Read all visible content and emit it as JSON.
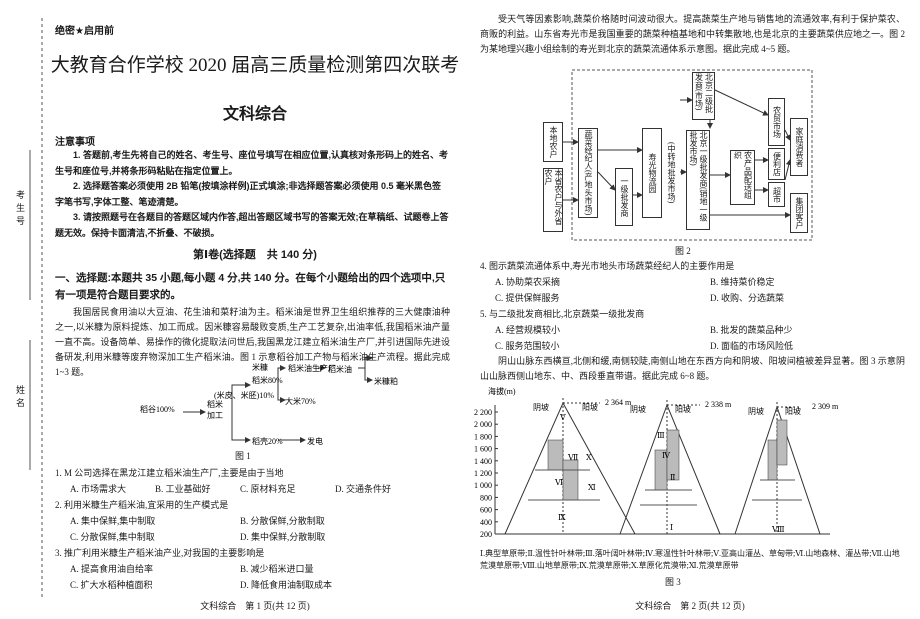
{
  "left": {
    "margin_labels": [
      "考生号",
      "姓名"
    ],
    "secret": "绝密★启用前",
    "title": "大教育合作学校 2020 届高三质量检测第四次联考",
    "subject": "文科综合",
    "notice_title": "注意事项",
    "notices": [
      "1. 答题前,考生先将自己的姓名、考生号、座位号填写在相应位置,认真核对条形码上的姓名、考生号和座位号,并将条形码粘贴在指定位置上。",
      "2. 选择题答案必须使用 2B 铅笔(按填涂样例)正式填涂;非选择题答案必须使用 0.5 毫米黑色签字笔书写,字体工整、笔迹清楚。",
      "3. 请按照题号在各题目的答题区域内作答,超出答题区域书写的答案无效;在草稿纸、试题卷上答题无效。保持卡面清洁,不折叠、不破损。"
    ],
    "section": "第Ⅰ卷(选择题　共 140 分)",
    "part": "一、选择题:本题共 35 小题,每小题 4 分,共 140 分。在每个小题给出的四个选项中,只有一项是符合题目要求的。",
    "passage": "我国居民食用油以大豆油、花生油和菜籽油为主。稻米油是世界卫生组织推荐的三大健康油种之一,以米糠为原料提炼、加工而成。因米糠容易酸败变质,生产工艺复杂,出油率低,我国稻米油产量一直不高。设备简单、易操作的微化提取法问世后,我国黑龙江建立稻米油生产厂,并引进国际先进设备研发,利用米糠等废弃物深加工生产稻米油。图 1 示意稻谷加工产物与稻米油生产流程。据此完成 1~3 题。",
    "figure1": {
      "nodes": [
        "稻谷100%",
        "稻米加工",
        "稻米80%",
        "米糠",
        "(米皮、米胚)10%",
        "稻米油生产厂",
        "稻米油",
        "米糠粕",
        "大米70%",
        "稻壳20%",
        "发电"
      ],
      "caption": "图 1"
    },
    "questions": [
      {
        "stem": "1. M 公司选择在黑龙江建立稻米油生产厂,主要是由于当地",
        "options": [
          "A. 市场需求大",
          "B. 工业基础好",
          "C. 原材料充足",
          "D. 交通条件好"
        ]
      },
      {
        "stem": "2. 利用米糠生产稻米油,宜采用的生产模式是",
        "options": [
          "A. 集中保鲜,集中制取",
          "B. 分散保鲜,分散制取",
          "C. 分散保鲜,集中制取",
          "D. 集中保鲜,分散制取"
        ]
      },
      {
        "stem": "3. 推广利用米糠生产稻米油产业,对我国的主要影响是",
        "options": [
          "A. 提高食用油自给率",
          "B. 减少稻米进口量",
          "C. 扩大水稻种植面积",
          "D. 降低食用油制取成本"
        ]
      }
    ],
    "footer": "文科综合　第 1 页(共 12 页)"
  },
  "right": {
    "passage1": "受天气等因素影响,蔬菜价格随时间波动很大。提高蔬菜生产地与销售地的流通效率,有利于保护菜农、商贩的利益。山东省寿光市是我国重要的蔬菜种植基地和中转集散地,也是北京的主要蔬菜供应地之一。图 2 为某地理兴趣小组绘制的寿光到北京的蔬菜流通体系示意图。据此完成 4~5 题。",
    "figure2": {
      "nodes": [
        "本地农户",
        "本省农户与外省农户",
        "蔬菜经纪人(产地头市场)",
        "一级批发商",
        "寿光物流园",
        "(中转地批发市场)",
        "北京二级批发商(市场)",
        "北京一级批发商(销地一级批发市场)",
        "农产品配送组织",
        "农贸市场",
        "便利店",
        "超市",
        "家庭消费者",
        "集团客户"
      ],
      "caption": "图 2"
    },
    "questions": [
      {
        "stem": "4. 图示蔬菜流通体系中,寿光市地头市场蔬菜经纪人的主要作用是",
        "options": [
          "A. 协助菜农采摘",
          "B. 维持菜价稳定",
          "C. 提供保鲜服务",
          "D. 收购、分选蔬菜"
        ]
      },
      {
        "stem": "5. 与二级批发商相比,北京蔬菜一级批发商",
        "options": [
          "A. 经营规模较小",
          "B. 批发的蔬菜品种少",
          "C. 服务范围较小",
          "D. 面临的市场风险低"
        ]
      }
    ],
    "passage2": "阴山山脉东西横亘,北侧和缓,南侧较陡,南侧山地在东西方向和阴坡、阳坡间植被差异显著。图 3 示意阴山山脉西侧山地东、中、西段垂直带谱。据此完成 6~8 题。",
    "figure3": {
      "axis_label": "海拔(m)",
      "ticks": [
        "2 200",
        "2 000",
        "1 800",
        "1 600",
        "1 400",
        "1 200",
        "1 000",
        "800",
        "600",
        "400",
        "200"
      ],
      "peaks": [
        "2 364 m",
        "2 338 m",
        "2 309 m"
      ],
      "slopes": [
        "阴坡",
        "阳坡"
      ],
      "zones": [
        "Ⅴ",
        "Ⅶ",
        "Ⅹ",
        "Ⅵ",
        "Ⅺ",
        "Ⅸ",
        "Ⅲ",
        "Ⅳ",
        "Ⅱ",
        "Ⅰ",
        "Ⅷ"
      ],
      "legend": "Ⅰ.典型草原带;Ⅱ.温性针叶林带;Ⅲ.落叶阔叶林带;Ⅳ.寒温性针叶林带;Ⅴ.亚高山灌丛、草甸带;Ⅵ.山地森林、灌丛带;Ⅶ.山地荒漠草原带;Ⅷ.山地草原带;Ⅸ.荒漠草原带;Ⅹ.草原化荒漠带;Ⅺ.荒漠草原带",
      "caption": "图 3"
    },
    "footer": "文科综合　第 2 页(共 12 页)"
  }
}
